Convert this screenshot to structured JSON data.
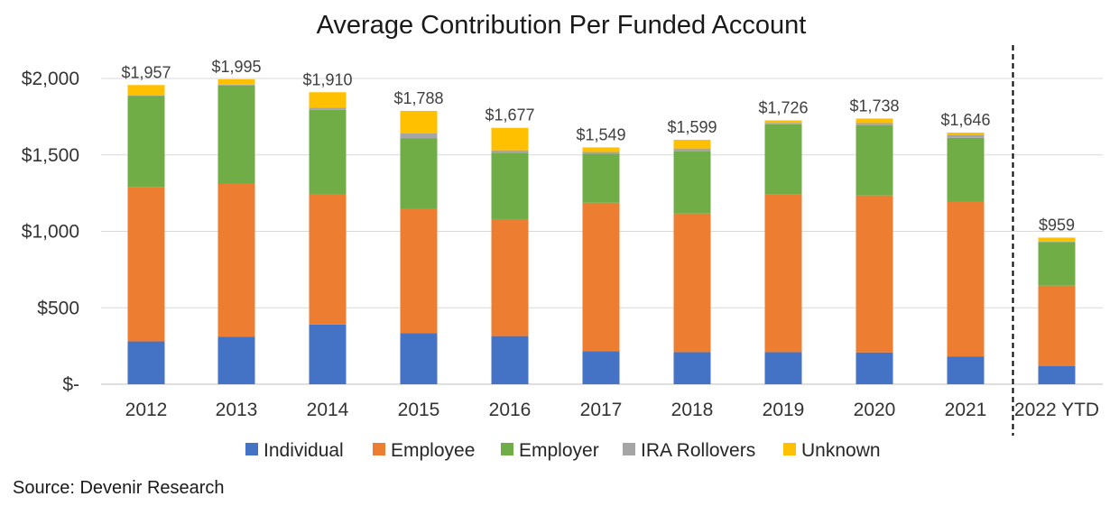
{
  "chart_data": {
    "type": "bar",
    "stacked": true,
    "title": "Average Contribution Per Funded Account",
    "xlabel": "",
    "ylabel": "",
    "categories": [
      "2012",
      "2013",
      "2014",
      "2015",
      "2016",
      "2017",
      "2018",
      "2019",
      "2020",
      "2021",
      "2022 YTD"
    ],
    "ylim": [
      0,
      2000
    ],
    "yticks": [
      0,
      500,
      1000,
      1500,
      2000
    ],
    "ytick_labels": [
      "$-",
      "$500",
      "$1,000",
      "$1,500",
      "$2,000"
    ],
    "grid": true,
    "legend_position": "bottom",
    "separator_before": "2022 YTD",
    "series": [
      {
        "name": "Individual",
        "color": "#4472C4",
        "values": [
          280,
          310,
          390,
          335,
          315,
          215,
          210,
          210,
          208,
          180,
          120
        ]
      },
      {
        "name": "Employee",
        "color": "#ED7D31",
        "values": [
          1010,
          1000,
          855,
          810,
          765,
          972,
          907,
          1030,
          1027,
          1012,
          525
        ]
      },
      {
        "name": "Employer",
        "color": "#70AD47",
        "values": [
          595,
          645,
          550,
          465,
          435,
          320,
          405,
          460,
          460,
          420,
          285
        ]
      },
      {
        "name": "IRA Rollovers",
        "color": "#A5A5A5",
        "values": [
          5,
          5,
          15,
          30,
          15,
          12,
          20,
          10,
          13,
          20,
          4
        ]
      },
      {
        "name": "Unknown",
        "color": "#FFC000",
        "values": [
          67,
          35,
          100,
          148,
          147,
          30,
          57,
          16,
          30,
          14,
          25
        ]
      }
    ],
    "totals": [
      1957,
      1995,
      1910,
      1788,
      1677,
      1549,
      1599,
      1726,
      1738,
      1646,
      959
    ],
    "total_labels": [
      "$1,957",
      "$1,995",
      "$1,910",
      "$1,788",
      "$1,677",
      "$1,549",
      "$1,599",
      "$1,726",
      "$1,738",
      "$1,646",
      "$959"
    ]
  },
  "footer": {
    "source": "Source: Devenir Research"
  }
}
